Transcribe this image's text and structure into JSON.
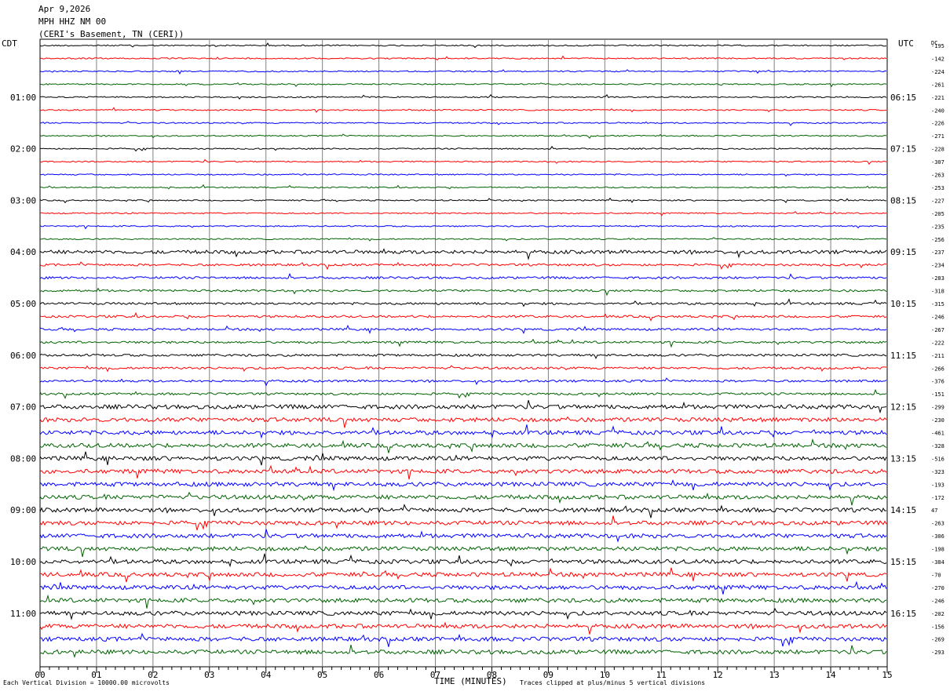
{
  "header": {
    "date": "Apr 9,2026",
    "station": "MPH HHZ NM 00",
    "location": "(CERI's Basement, TN (CERI))"
  },
  "left_tz": "CDT",
  "right_tz": "UTC",
  "dc_label": "DC",
  "footer": {
    "scale": "Each Vertical Division = 10000.00 microvolts",
    "clip": "Traces clipped at plus/minus 5 vertical divisions"
  },
  "chart_data": {
    "type": "line",
    "xlabel": "TIME (MINUTES)",
    "xlim": [
      0,
      15
    ],
    "x_ticks": [
      "00",
      "01",
      "02",
      "03",
      "04",
      "05",
      "06",
      "07",
      "08",
      "09",
      "10",
      "11",
      "12",
      "13",
      "14",
      "15"
    ],
    "left_hour_labels": [
      "01:00",
      "02:00",
      "03:00",
      "04:00",
      "05:00",
      "06:00",
      "07:00",
      "08:00",
      "09:00",
      "10:00",
      "11:00"
    ],
    "right_hour_labels": [
      "06:15",
      "07:15",
      "08:15",
      "09:15",
      "10:15",
      "11:15",
      "12:15",
      "13:15",
      "14:15",
      "15:15",
      "16:15"
    ],
    "trace_colors": [
      "#000000",
      "#ff0000",
      "#0000ff",
      "#006400"
    ],
    "traces_per_hour": 4,
    "dc_offsets": [
      -195,
      -142,
      -224,
      -261,
      -221,
      -240,
      -226,
      -271,
      -228,
      -307,
      -263,
      -253,
      -227,
      -205,
      -235,
      -256,
      -237,
      -234,
      -283,
      -318,
      -315,
      -246,
      -267,
      -222,
      -211,
      -266,
      -376,
      -151,
      -299,
      -230,
      -461,
      -328,
      -516,
      -323,
      -193,
      -172,
      47,
      -263,
      -306,
      -198,
      -384,
      -70,
      -270,
      -246,
      -202,
      -156,
      -269,
      -293
    ],
    "grid": true
  }
}
